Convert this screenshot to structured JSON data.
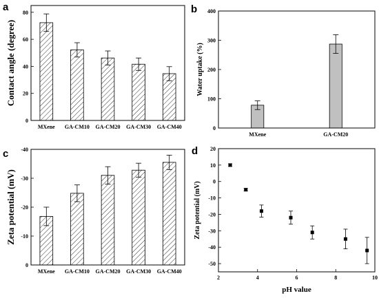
{
  "panels": {
    "a": "a",
    "b": "b",
    "c": "c",
    "d": "d"
  },
  "chart_data": [
    {
      "id": "a",
      "type": "bar",
      "ylabel": "Contact angle (degree)",
      "ylim": [
        0,
        85
      ],
      "yticks": [
        0,
        20,
        40,
        60,
        80
      ],
      "ytick_labels": [
        "0",
        "20",
        "40",
        "60",
        "80"
      ],
      "categories": [
        "MXene",
        "GA-CM10",
        "GA-CM20",
        "GA-CM30",
        "GA-CM40"
      ],
      "values": [
        72.3,
        52.2,
        46.2,
        41.6,
        34.6
      ],
      "errors": [
        6.5,
        5.3,
        5.2,
        4.6,
        5.2
      ],
      "bar_fill": "hatch",
      "grid": false
    },
    {
      "id": "b",
      "type": "bar",
      "ylabel": "Water uptake (%)",
      "ylim": [
        0,
        400
      ],
      "yticks": [
        0,
        100,
        200,
        300,
        400
      ],
      "ytick_labels": [
        "0",
        "100",
        "200",
        "300",
        "400"
      ],
      "categories": [
        "MXene",
        "GA-CM20"
      ],
      "values": [
        78,
        287
      ],
      "errors": [
        15,
        32
      ],
      "bar_fill": "#c0c0c0",
      "grid": false
    },
    {
      "id": "c",
      "type": "bar",
      "ylabel": "Zeta potential (mV)",
      "ylim": [
        0,
        -40
      ],
      "yticks": [
        0,
        -10,
        -20,
        -30,
        -40
      ],
      "ytick_labels": [
        "0",
        "-10",
        "-20",
        "-30",
        "-40"
      ],
      "categories": [
        "MXene",
        "GA-CM10",
        "GA-CM20",
        "GA-CM30",
        "GA-CM40"
      ],
      "values": [
        -16.8,
        -24.8,
        -31.0,
        -32.8,
        -35.5
      ],
      "errors": [
        3.2,
        2.9,
        3.0,
        2.4,
        2.5
      ],
      "bar_fill": "hatch",
      "grid": false
    },
    {
      "id": "d",
      "type": "scatter",
      "xlabel": "pH value",
      "ylabel": "Zeta potential (mV)",
      "xlim": [
        2,
        10
      ],
      "ylim": [
        -55,
        20
      ],
      "xticks": [
        2,
        4,
        6,
        8,
        10
      ],
      "xtick_labels": [
        "2",
        "4",
        "6",
        "8",
        "10"
      ],
      "yticks": [
        20,
        10,
        0,
        -10,
        -20,
        -30,
        -40,
        -50
      ],
      "ytick_labels": [
        "20",
        "10",
        "0",
        "-10",
        "-20",
        "-30",
        "-40",
        "-50"
      ],
      "x": [
        2.6,
        3.4,
        4.2,
        5.7,
        6.8,
        8.5,
        9.6
      ],
      "y": [
        10,
        -5,
        -18,
        -22,
        -31,
        -35,
        -42
      ],
      "errors": [
        0.8,
        0.8,
        3.7,
        4,
        4,
        6,
        8
      ],
      "grid": false
    }
  ]
}
